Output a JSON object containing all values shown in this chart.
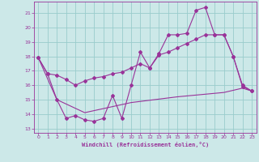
{
  "xlabel": "Windchill (Refroidissement éolien,°C)",
  "background_color": "#cce8e8",
  "grid_color": "#99cccc",
  "line_color": "#993399",
  "spine_color": "#993399",
  "xlim": [
    -0.5,
    23.5
  ],
  "ylim": [
    12.7,
    21.8
  ],
  "yticks": [
    13,
    14,
    15,
    16,
    17,
    18,
    19,
    20,
    21
  ],
  "xticks": [
    0,
    1,
    2,
    3,
    4,
    5,
    6,
    7,
    8,
    9,
    10,
    11,
    12,
    13,
    14,
    15,
    16,
    17,
    18,
    19,
    20,
    21,
    22,
    23
  ],
  "series1_x": [
    0,
    1,
    2,
    3,
    4,
    5,
    6,
    7,
    8,
    9,
    10,
    11,
    12,
    13,
    14,
    15,
    16,
    17,
    18,
    19,
    20,
    21,
    22,
    23
  ],
  "series1_y": [
    17.9,
    16.8,
    15.0,
    13.7,
    13.9,
    13.6,
    13.5,
    13.7,
    15.3,
    13.7,
    16.0,
    18.3,
    17.2,
    18.2,
    19.5,
    19.5,
    19.6,
    21.2,
    21.4,
    19.5,
    19.5,
    18.0,
    15.9,
    15.6
  ],
  "series2_x": [
    0,
    1,
    2,
    3,
    4,
    5,
    6,
    7,
    8,
    9,
    10,
    11,
    12,
    13,
    14,
    15,
    16,
    17,
    18,
    19,
    20,
    21,
    22,
    23
  ],
  "series2_y": [
    17.9,
    16.8,
    16.7,
    16.4,
    16.0,
    16.3,
    16.5,
    16.6,
    16.8,
    16.9,
    17.2,
    17.5,
    17.2,
    18.1,
    18.3,
    18.6,
    18.9,
    19.2,
    19.5,
    19.5,
    19.5,
    18.0,
    16.0,
    15.6
  ],
  "series3_x": [
    0,
    2,
    5,
    10,
    15,
    20,
    22,
    23
  ],
  "series3_y": [
    17.9,
    15.0,
    14.1,
    14.8,
    15.2,
    15.5,
    15.8,
    15.6
  ]
}
